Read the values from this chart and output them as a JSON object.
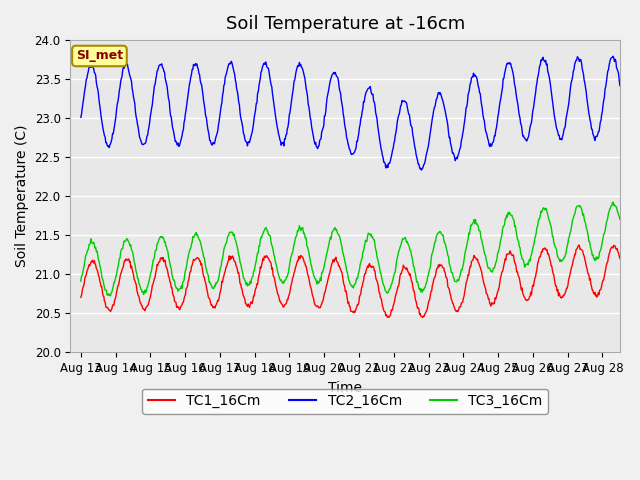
{
  "title": "Soil Temperature at -16cm",
  "xlabel": "Time",
  "ylabel": "Soil Temperature (C)",
  "ylim": [
    20.0,
    24.0
  ],
  "yticks": [
    20.0,
    20.5,
    21.0,
    21.5,
    22.0,
    22.5,
    23.0,
    23.5,
    24.0
  ],
  "xtick_positions": [
    0,
    1,
    2,
    3,
    4,
    5,
    6,
    7,
    8,
    9,
    10,
    11,
    12,
    13,
    14,
    15
  ],
  "xtick_labels": [
    "Aug 13",
    "Aug 14",
    "Aug 15",
    "Aug 16",
    "Aug 17",
    "Aug 18",
    "Aug 19",
    "Aug 20",
    "Aug 21",
    "Aug 22",
    "Aug 23",
    "Aug 24",
    "Aug 25",
    "Aug 26",
    "Aug 27",
    "Aug 28"
  ],
  "xlim": [
    -0.3,
    15.5
  ],
  "series": {
    "TC1_16Cm": {
      "color": "#ff0000",
      "label": "TC1_16Cm"
    },
    "TC2_16Cm": {
      "color": "#0000ff",
      "label": "TC2_16Cm"
    },
    "TC3_16Cm": {
      "color": "#00cc00",
      "label": "TC3_16Cm"
    }
  },
  "legend_label": "SI_met",
  "legend_bg": "#ffff99",
  "legend_border": "#aa8800",
  "background_color": "#e8e8e8",
  "grid_color": "#ffffff",
  "title_fontsize": 13,
  "axis_fontsize": 10,
  "tick_fontsize": 8.5
}
